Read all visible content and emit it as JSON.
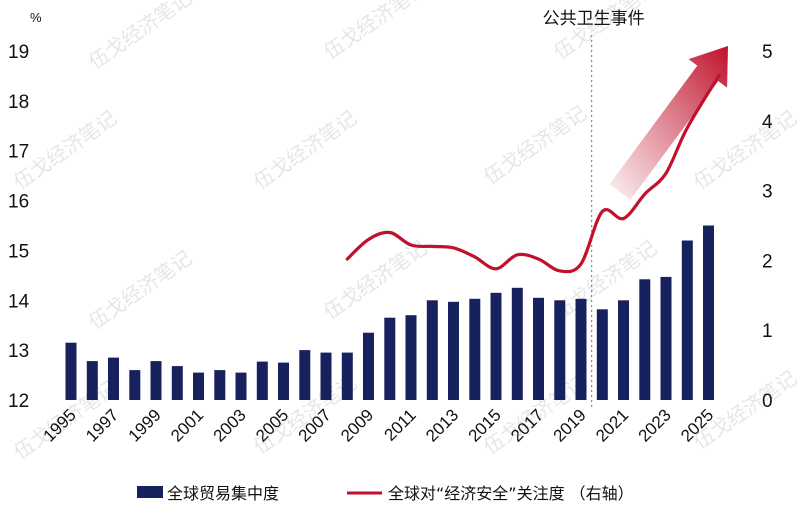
{
  "chart_data": {
    "type": "bar",
    "left_axis": {
      "unit": "%",
      "ylim": [
        12,
        19
      ],
      "ticks": [
        "12",
        "13",
        "14",
        "15",
        "16",
        "17",
        "18",
        "19"
      ]
    },
    "right_axis": {
      "ylim": [
        0,
        5
      ],
      "ticks": [
        "0",
        "1",
        "2",
        "3",
        "4",
        "5"
      ]
    },
    "x_tick_labels": [
      "1995",
      "1997",
      "1999",
      "2001",
      "2003",
      "2005",
      "2007",
      "2009",
      "2011",
      "2013",
      "2015",
      "2017",
      "2019",
      "2021",
      "2023",
      "2025"
    ],
    "series": [
      {
        "name": "全球贸易集中度",
        "type": "bar",
        "axis": "left",
        "color": "#16215e",
        "x": [
          1995,
          1996,
          1997,
          1998,
          1999,
          2000,
          2001,
          2002,
          2003,
          2004,
          2005,
          2006,
          2007,
          2008,
          2009,
          2010,
          2011,
          2012,
          2013,
          2014,
          2015,
          2016,
          2017,
          2018,
          2019,
          2020,
          2021,
          2022,
          2023,
          2024,
          2025
        ],
        "values": [
          13.15,
          12.78,
          12.85,
          12.6,
          12.78,
          12.68,
          12.55,
          12.6,
          12.55,
          12.77,
          12.75,
          13.0,
          12.95,
          12.95,
          13.35,
          13.65,
          13.7,
          14.0,
          13.97,
          14.03,
          14.15,
          14.25,
          14.05,
          14.0,
          14.03,
          13.82,
          14.0,
          14.42,
          14.47,
          15.2,
          15.5
        ]
      },
      {
        "name": "全球对“经济安全”关注度 （右轴）",
        "type": "line",
        "axis": "right",
        "color": "#c0122c",
        "x": [
          2008,
          2009,
          2010,
          2011,
          2012,
          2013,
          2014,
          2015,
          2016,
          2017,
          2018,
          2019,
          2020,
          2021,
          2022,
          2023,
          2024,
          2025.5
        ],
        "values": [
          2.02,
          2.3,
          2.4,
          2.22,
          2.2,
          2.18,
          2.05,
          1.88,
          2.08,
          2.02,
          1.85,
          1.95,
          2.7,
          2.6,
          2.95,
          3.25,
          3.9,
          4.65
        ]
      }
    ],
    "annotations": {
      "event_label": "公共卫生事件",
      "event_x": 2019.5
    },
    "legend": {
      "position": "bottom"
    },
    "grid": false,
    "watermark": "伍戈经济笔记"
  }
}
